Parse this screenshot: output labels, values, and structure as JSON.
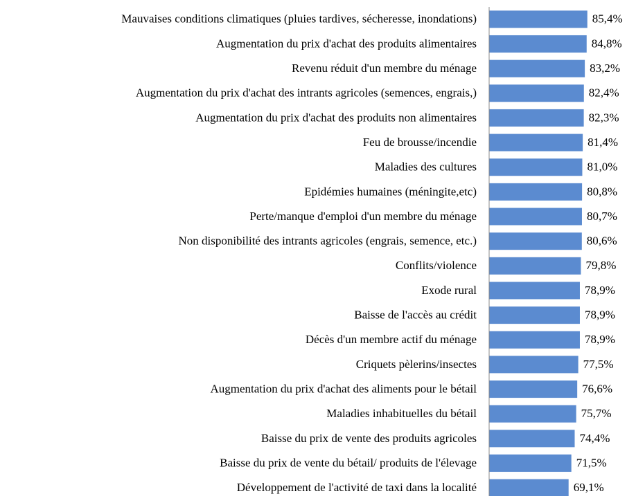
{
  "chart_data": {
    "type": "barh",
    "categories": [
      "Mauvaises conditions climatiques (pluies tardives, sécheresse, inondations)",
      "Augmentation du prix d'achat des produits alimentaires",
      "Revenu réduit d'un membre du ménage",
      "Augmentation du prix d'achat des intrants agricoles (semences, engrais,)",
      "Augmentation du prix d'achat des produits non alimentaires",
      "Feu de brousse/incendie",
      "Maladies des cultures",
      "Epidémies humaines (méningite,etc)",
      "Perte/manque d'emploi d'un membre du ménage",
      "Non disponibilité des intrants agricoles (engrais, semence, etc.)",
      "Conflits/violence",
      "Exode rural",
      "Baisse de l'accès au crédit",
      "Décès d'un membre actif du ménage",
      "Criquets pèlerins/insectes",
      "Augmentation du prix d'achat des aliments pour le bétail",
      "Maladies inhabituelles du bétail",
      "Baisse du prix de vente des produits agricoles",
      "Baisse du prix de vente du bétail/ produits de l'élevage",
      "Développement de l'activité de taxi dans la localité"
    ],
    "values": [
      85.4,
      84.8,
      83.2,
      82.4,
      82.3,
      81.4,
      81.0,
      80.8,
      80.7,
      80.6,
      79.8,
      78.9,
      78.9,
      78.9,
      77.5,
      76.6,
      75.7,
      74.4,
      71.5,
      69.1
    ],
    "value_labels": [
      "85,4%",
      "84,8%",
      "83,2%",
      "82,4%",
      "82,3%",
      "81,4%",
      "81,0%",
      "80,8%",
      "80,7%",
      "80,6%",
      "79,8%",
      "78,9%",
      "78,9%",
      "78,9%",
      "77,5%",
      "76,6%",
      "75,7%",
      "74,4%",
      "71,5%",
      "69,1%"
    ],
    "color": "#5b8bd0"
  }
}
